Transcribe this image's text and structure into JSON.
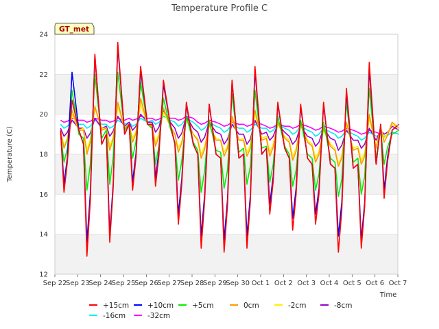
{
  "chart_data": {
    "type": "line",
    "title": "Temperature Profile C",
    "xlabel": "Time",
    "ylabel": "Temperature (C)",
    "badge": "GT_met",
    "xlim": [
      0,
      15
    ],
    "ylim": [
      12,
      24
    ],
    "x_tick_labels": [
      "Sep 22",
      "Sep 23",
      "Sep 24",
      "Sep 25",
      "Sep 26",
      "Sep 27",
      "Sep 28",
      "Sep 29",
      "Sep 30",
      "Oct 1",
      "Oct 2",
      "Oct 3",
      "Oct 4",
      "Oct 5",
      "Oct 6",
      "Oct 7"
    ],
    "y_ticks": [
      12,
      14,
      16,
      18,
      20,
      22,
      24
    ],
    "bands": [
      [
        12,
        14
      ],
      [
        16,
        18
      ],
      [
        20,
        22
      ]
    ],
    "grid": true,
    "legend_position": "bottom",
    "day_x": [
      0.25,
      1.25,
      2.25,
      3.25,
      4.25,
      5.25,
      6.25,
      7.25,
      8.25,
      9.25,
      10.25,
      11.25,
      12.25,
      13.25,
      14.25
    ],
    "series": [
      {
        "name": "+15cm",
        "color": "#ff0000",
        "mean": [
          19.2,
          18.5,
          19.0,
          19.5,
          19.5,
          18.5,
          18.0,
          17.8,
          18.0,
          18.3,
          17.8,
          17.5,
          17.3,
          17.5,
          19.5
        ],
        "high": [
          20.7,
          23.0,
          23.6,
          22.4,
          21.7,
          20.6,
          20.5,
          21.7,
          22.4,
          20.6,
          20.5,
          20.6,
          21.3,
          22.6,
          19.2
        ],
        "low": [
          16.1,
          12.9,
          13.6,
          16.2,
          16.4,
          14.5,
          13.3,
          13.1,
          13.3,
          15.0,
          14.2,
          14.5,
          13.1,
          13.3,
          15.8
        ]
      },
      {
        "name": "+10cm",
        "color": "#0000ff",
        "mean": [
          19.2,
          18.5,
          19.0,
          19.5,
          19.5,
          18.5,
          18.0,
          17.8,
          18.0,
          18.3,
          17.8,
          17.5,
          17.3,
          17.5,
          19.5
        ],
        "high": [
          22.1,
          22.9,
          23.4,
          22.2,
          21.5,
          20.5,
          20.5,
          21.6,
          22.2,
          20.5,
          20.4,
          20.5,
          21.1,
          22.3,
          19.2
        ],
        "low": [
          16.5,
          13.6,
          14.0,
          16.6,
          16.8,
          15.0,
          13.9,
          13.7,
          13.9,
          15.5,
          14.8,
          15.0,
          13.9,
          13.7,
          16.2
        ]
      },
      {
        "name": "+5cm",
        "color": "#00ee00",
        "mean": [
          19.0,
          18.8,
          19.2,
          19.5,
          19.3,
          18.6,
          18.2,
          18.1,
          18.3,
          18.4,
          18.0,
          17.8,
          17.6,
          17.8,
          19.2
        ],
        "high": [
          21.2,
          22.0,
          22.1,
          21.6,
          20.8,
          19.9,
          19.7,
          21.0,
          21.2,
          19.9,
          19.7,
          19.6,
          20.6,
          21.3,
          19.0
        ],
        "low": [
          17.6,
          16.2,
          16.5,
          17.8,
          17.5,
          16.7,
          16.1,
          16.3,
          16.5,
          16.6,
          16.4,
          16.2,
          15.9,
          16.0,
          17.5
        ]
      },
      {
        "name": "0cm",
        "color": "#ff9900",
        "mean": [
          19.2,
          19.2,
          19.3,
          19.5,
          19.4,
          19.0,
          18.7,
          18.7,
          18.7,
          18.8,
          18.6,
          18.4,
          18.2,
          18.3,
          19.3
        ],
        "high": [
          20.2,
          20.4,
          20.6,
          20.8,
          20.3,
          19.8,
          19.5,
          19.9,
          20.2,
          19.6,
          19.5,
          19.3,
          19.6,
          20.0,
          19.6
        ],
        "low": [
          18.3,
          18.0,
          18.2,
          18.6,
          18.4,
          18.1,
          17.8,
          17.9,
          17.9,
          17.9,
          17.7,
          17.6,
          17.4,
          17.5,
          18.6
        ]
      },
      {
        "name": "-2cm",
        "color": "#ffee00",
        "mean": [
          19.2,
          19.3,
          19.3,
          19.5,
          19.4,
          19.0,
          18.8,
          18.7,
          18.8,
          18.9,
          18.7,
          18.5,
          18.3,
          18.4,
          19.3
        ],
        "high": [
          20.0,
          20.3,
          20.4,
          20.5,
          20.1,
          19.7,
          19.4,
          19.8,
          20.0,
          19.5,
          19.4,
          19.2,
          19.5,
          19.8,
          19.5
        ],
        "low": [
          18.4,
          18.2,
          18.4,
          18.8,
          18.6,
          18.3,
          18.0,
          18.1,
          18.1,
          18.1,
          17.9,
          17.8,
          17.5,
          17.7,
          18.8
        ]
      },
      {
        "name": "-8cm",
        "color": "#9900cc",
        "mean": [
          19.3,
          19.3,
          19.4,
          19.6,
          19.6,
          19.3,
          19.1,
          19.0,
          19.0,
          19.1,
          18.9,
          18.8,
          18.7,
          18.7,
          19.2
        ],
        "high": [
          19.7,
          19.8,
          19.9,
          20.0,
          20.2,
          19.9,
          19.6,
          19.5,
          19.7,
          19.5,
          19.4,
          19.3,
          19.2,
          19.3,
          19.4
        ],
        "low": [
          18.9,
          18.8,
          18.9,
          19.2,
          19.1,
          18.8,
          18.6,
          18.5,
          18.5,
          18.7,
          18.5,
          18.4,
          18.2,
          18.3,
          19.0
        ]
      },
      {
        "name": "-16cm",
        "color": "#00eeee",
        "mean": [
          19.5,
          19.5,
          19.5,
          19.6,
          19.7,
          19.6,
          19.4,
          19.3,
          19.3,
          19.3,
          19.2,
          19.1,
          19.0,
          18.9,
          19.0
        ],
        "high": [
          19.7,
          19.7,
          19.7,
          19.8,
          19.9,
          19.8,
          19.6,
          19.5,
          19.5,
          19.5,
          19.4,
          19.3,
          19.2,
          19.1,
          19.1
        ],
        "low": [
          19.3,
          19.3,
          19.3,
          19.4,
          19.5,
          19.4,
          19.2,
          19.1,
          19.1,
          19.1,
          19.0,
          18.9,
          18.8,
          18.7,
          18.9
        ]
      },
      {
        "name": "-32cm",
        "color": "#ff00ff",
        "mean": [
          19.7,
          19.7,
          19.7,
          19.8,
          19.8,
          19.8,
          19.6,
          19.5,
          19.5,
          19.4,
          19.4,
          19.3,
          19.2,
          19.1,
          19.0
        ],
        "high": [
          19.8,
          19.8,
          19.8,
          19.9,
          19.9,
          19.9,
          19.7,
          19.6,
          19.6,
          19.5,
          19.5,
          19.4,
          19.3,
          19.2,
          19.1
        ],
        "low": [
          19.6,
          19.6,
          19.6,
          19.7,
          19.7,
          19.7,
          19.5,
          19.4,
          19.4,
          19.3,
          19.3,
          19.2,
          19.1,
          19.0,
          18.9
        ]
      }
    ]
  }
}
